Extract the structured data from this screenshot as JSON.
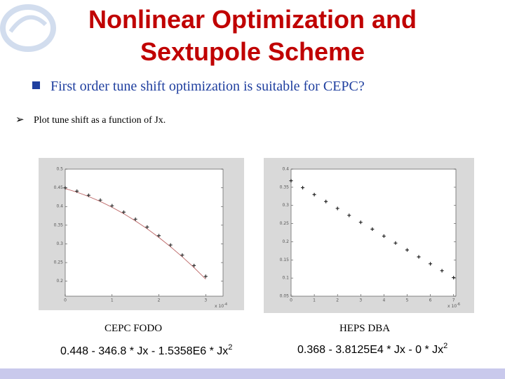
{
  "header": {
    "title_lines": [
      "Nonlinear Optimization and",
      "Sextupole Scheme"
    ]
  },
  "bullet": "First order tune shift optimization is suitable for CEPC?",
  "sub_bullet": "Plot tune shift as a function of Jx.",
  "captions": [
    "CEPC FODO",
    "HEPS DBA"
  ],
  "formulas": [
    {
      "text": "0.448 - 346.8 * Jx - 1.5358E6 * Jx",
      "power": "2"
    },
    {
      "text": "0.368 - 3.8125E4 * Jx - 0 * Jx",
      "power": "2"
    }
  ],
  "chart_data": [
    {
      "type": "scatter",
      "x_multiplier": {
        "base": "x 10",
        "exp": "-4"
      },
      "xlim": [
        0,
        3.37
      ],
      "ylim": [
        0.16,
        0.5
      ],
      "xticks": [
        0,
        1,
        2,
        3
      ],
      "yticks": [
        0.5,
        0.45,
        0.4,
        0.35,
        0.3,
        0.25,
        0.2
      ],
      "series": [
        {
          "mode": "line",
          "color": "#c07070",
          "x": [
            0,
            0.25,
            0.5,
            0.75,
            1,
            1.25,
            1.5,
            1.75,
            2,
            2.25,
            2.5,
            2.75,
            3
          ],
          "values": [
            0.448,
            0.4384,
            0.4268,
            0.4134,
            0.398,
            0.3807,
            0.3614,
            0.3403,
            0.3172,
            0.2922,
            0.2653,
            0.2365,
            0.2057
          ]
        },
        {
          "mode": "markers",
          "color": "#333333",
          "x": [
            0,
            0.25,
            0.5,
            0.75,
            1,
            1.25,
            1.5,
            1.75,
            2,
            2.25,
            2.5,
            2.75,
            3
          ],
          "values": [
            0.45,
            0.441,
            0.43,
            0.417,
            0.402,
            0.385,
            0.366,
            0.345,
            0.322,
            0.297,
            0.27,
            0.242,
            0.213
          ]
        }
      ]
    },
    {
      "type": "scatter",
      "x_multiplier": {
        "base": "x 10",
        "exp": "-6"
      },
      "xlim": [
        0,
        7.1
      ],
      "ylim": [
        0.05,
        0.4
      ],
      "xticks": [
        0,
        1,
        2,
        3,
        4,
        5,
        6,
        7
      ],
      "yticks": [
        0.4,
        0.35,
        0.3,
        0.25,
        0.2,
        0.15,
        0.1,
        0.05
      ],
      "series": [
        {
          "mode": "markers",
          "color": "#222222",
          "x": [
            0,
            0.5,
            1,
            1.5,
            2,
            2.5,
            3,
            3.5,
            4,
            4.5,
            5,
            5.5,
            6,
            6.5,
            7
          ],
          "values": [
            0.368,
            0.3489,
            0.3299,
            0.3108,
            0.2918,
            0.2727,
            0.2536,
            0.2346,
            0.2155,
            0.1964,
            0.1774,
            0.1583,
            0.1393,
            0.1202,
            0.1011
          ]
        }
      ]
    }
  ]
}
